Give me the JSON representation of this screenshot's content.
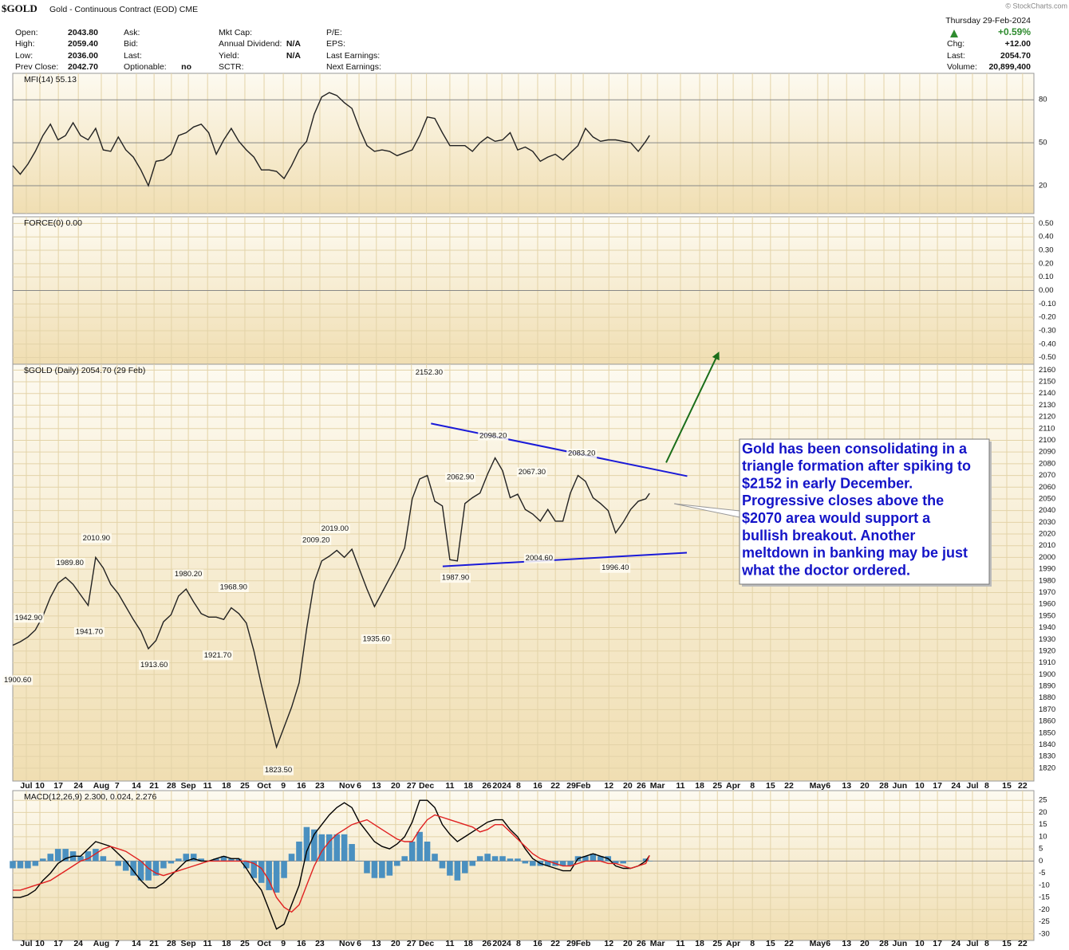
{
  "header": {
    "symbol": "$GOLD",
    "description": "Gold - Continuous Contract (EOD) CME",
    "credit": "© StockCharts.com",
    "fields": [
      [
        {
          "label": "Open:",
          "value": "2043.80"
        },
        {
          "label": "High:",
          "value": "2059.40"
        },
        {
          "label": "Low:",
          "value": "2036.00"
        },
        {
          "label": "Prev Close:",
          "value": "2042.70"
        }
      ],
      [
        {
          "label": "Ask:"
        },
        {
          "label": "Bid:"
        },
        {
          "label": "Last:"
        },
        {
          "label": "Optionable:",
          "value": "no"
        }
      ],
      [
        {
          "label": "Mkt Cap:"
        },
        {
          "label": "Annual Dividend:",
          "value": "N/A"
        },
        {
          "label": "Yield:",
          "value": "N/A"
        },
        {
          "label": "SCTR:"
        }
      ],
      [
        {
          "label": "P/E:"
        },
        {
          "label": "EPS:"
        },
        {
          "label": "Last Earnings:"
        },
        {
          "label": "Next Earnings:"
        }
      ]
    ],
    "date": "Thursday  29-Feb-2024",
    "change_pct": "+0.59%",
    "stats": [
      {
        "label": "Chg:",
        "value": "+12.00"
      },
      {
        "label": "Last:",
        "value": "2054.70"
      },
      {
        "label": "Volume:",
        "value": "20,899,400"
      }
    ]
  },
  "x_axis": {
    "xlim": [
      -3,
      268
    ],
    "x": [
      -3,
      -1,
      1,
      3,
      5,
      7,
      9,
      11,
      13,
      15,
      17,
      19,
      21,
      23,
      25,
      27,
      29,
      31,
      33,
      35,
      37,
      39,
      41,
      43,
      45,
      47,
      49,
      51,
      53,
      55,
      57,
      59,
      61,
      63,
      65,
      67,
      69,
      71,
      73,
      75,
      77,
      79,
      81,
      83,
      85,
      87,
      89,
      91,
      93,
      95,
      97,
      99,
      101,
      103,
      105,
      107,
      109,
      111,
      113,
      115,
      117,
      119,
      121,
      123,
      125,
      127,
      129,
      131,
      133,
      135,
      137,
      139,
      141,
      143,
      145,
      147,
      149,
      151,
      153,
      155,
      157,
      159,
      161,
      163,
      165,
      166
    ],
    "xticks": [
      {
        "value": 0.6,
        "label": "Jul"
      },
      {
        "value": 4.2,
        "label": "10"
      },
      {
        "value": 9.1,
        "label": "17"
      },
      {
        "value": 14.4,
        "label": "24"
      },
      {
        "value": 20.5,
        "label": "Aug"
      },
      {
        "value": 24.7,
        "label": "7"
      },
      {
        "value": 29.8,
        "label": "14"
      },
      {
        "value": 34.5,
        "label": "21"
      },
      {
        "value": 39.1,
        "label": "28"
      },
      {
        "value": 43.6,
        "label": "Sep"
      },
      {
        "value": 48.7,
        "label": "11"
      },
      {
        "value": 53.7,
        "label": "18"
      },
      {
        "value": 58.6,
        "label": "25"
      },
      {
        "value": 63.7,
        "label": "Oct"
      },
      {
        "value": 68.8,
        "label": "9"
      },
      {
        "value": 73.6,
        "label": "16"
      },
      {
        "value": 78.5,
        "label": "23"
      },
      {
        "value": 85.7,
        "label": "Nov"
      },
      {
        "value": 88.9,
        "label": "6"
      },
      {
        "value": 93.5,
        "label": "13"
      },
      {
        "value": 98.6,
        "label": "20"
      },
      {
        "value": 102.8,
        "label": "27"
      },
      {
        "value": 106.8,
        "label": "Dec"
      },
      {
        "value": 113,
        "label": "11"
      },
      {
        "value": 117.9,
        "label": "18"
      },
      {
        "value": 122.8,
        "label": "26"
      },
      {
        "value": 126.8,
        "label": "2024"
      },
      {
        "value": 131.2,
        "label": "8"
      },
      {
        "value": 136.3,
        "label": "16"
      },
      {
        "value": 141,
        "label": "22"
      },
      {
        "value": 145.2,
        "label": "29"
      },
      {
        "value": 148.4,
        "label": "Feb"
      },
      {
        "value": 155.2,
        "label": "12"
      },
      {
        "value": 160.2,
        "label": "20"
      },
      {
        "value": 163.8,
        "label": "26"
      },
      {
        "value": 168.1,
        "label": "Mar"
      },
      {
        "value": 174.2,
        "label": "11"
      },
      {
        "value": 179.3,
        "label": "18"
      },
      {
        "value": 184,
        "label": "25"
      },
      {
        "value": 188.2,
        "label": "Apr"
      },
      {
        "value": 193.3,
        "label": "8"
      },
      {
        "value": 198.1,
        "label": "15"
      },
      {
        "value": 203,
        "label": "22"
      },
      {
        "value": 210.6,
        "label": "May"
      },
      {
        "value": 213.4,
        "label": "6"
      },
      {
        "value": 218.3,
        "label": "13"
      },
      {
        "value": 223.1,
        "label": "20"
      },
      {
        "value": 228.2,
        "label": "28"
      },
      {
        "value": 232.4,
        "label": "Jun"
      },
      {
        "value": 237.7,
        "label": "10"
      },
      {
        "value": 242.4,
        "label": "17"
      },
      {
        "value": 247.3,
        "label": "24"
      },
      {
        "value": 251.7,
        "label": "Jul"
      },
      {
        "value": 255.5,
        "label": "8"
      },
      {
        "value": 260.8,
        "label": "15"
      },
      {
        "value": 265,
        "label": "22"
      }
    ]
  },
  "chart_data": [
    {
      "type": "line",
      "title": "MFI(14) 55.13",
      "ylim": [
        0.5,
        98.5
      ],
      "yticks": [
        20,
        50,
        80
      ],
      "grid": true,
      "series": [
        {
          "color": "#222222",
          "values": [
            34,
            28,
            35,
            44,
            55,
            63,
            52,
            55,
            64,
            55,
            52,
            60,
            45,
            44,
            54,
            45,
            40,
            31,
            20,
            37,
            38,
            42,
            55,
            57,
            61,
            63,
            57,
            42,
            52,
            60,
            51,
            45,
            40,
            31,
            31,
            30,
            25,
            34,
            45,
            51,
            70,
            82,
            85,
            83,
            78,
            74,
            60,
            48,
            44,
            45,
            44,
            41,
            43,
            45,
            55,
            68,
            67,
            57,
            48,
            48,
            48,
            44,
            50,
            54,
            51,
            52,
            57,
            45,
            47,
            44,
            37,
            40,
            42,
            38,
            43,
            48,
            60,
            54,
            51,
            52,
            52,
            51,
            50,
            44,
            51,
            55.13
          ]
        }
      ]
    },
    {
      "type": "line",
      "title": "FORCE(0) 0.00",
      "ylim": [
        -0.55,
        0.55
      ],
      "grid": true,
      "series": [],
      "yticks": [
        {
          "value": 0.5,
          "label": "0.50"
        },
        {
          "value": 0.4,
          "label": "0.40"
        },
        {
          "value": 0.3,
          "label": "0.30"
        },
        {
          "value": 0.2,
          "label": "0.20"
        },
        {
          "value": 0.1,
          "label": "0.10"
        },
        {
          "value": 0,
          "label": "0.00"
        },
        {
          "value": -0.1,
          "label": "-0.10"
        },
        {
          "value": -0.2,
          "label": "-0.20"
        },
        {
          "value": -0.3,
          "label": "-0.30"
        },
        {
          "value": -0.4,
          "label": "-0.40"
        },
        {
          "value": -0.5,
          "label": "-0.50"
        }
      ]
    },
    {
      "type": "line",
      "title": "$GOLD (Daily) 2054.70 (29 Feb)",
      "ylim": [
        1809,
        2165
      ],
      "grid": true,
      "yticks": [
        1820,
        1830,
        1840,
        1850,
        1860,
        1870,
        1880,
        1890,
        1900,
        1910,
        1920,
        1930,
        1940,
        1950,
        1960,
        1970,
        1980,
        1990,
        2000,
        2010,
        2020,
        2030,
        2040,
        2050,
        2060,
        2070,
        2080,
        2090,
        2100,
        2110,
        2120,
        2130,
        2140,
        2150,
        2160
      ],
      "series": [
        {
          "color": "#222222",
          "values": [
            1925,
            1928,
            1932,
            1938,
            1950,
            1966,
            1978,
            1983,
            1977,
            1968,
            1959,
            2000,
            1991,
            1977,
            1969,
            1958,
            1947,
            1937,
            1922,
            1929,
            1945,
            1951,
            1967,
            1973,
            1962,
            1952,
            1949,
            1949,
            1947,
            1957,
            1952,
            1944,
            1920,
            1891,
            1864,
            1838,
            1855,
            1872,
            1893,
            1939,
            1979,
            1997,
            2001,
            2006,
            2000,
            2007,
            1990,
            1973,
            1958,
            1970,
            1982,
            1994,
            2008,
            2050,
            2067,
            2070,
            2048,
            2044,
            1998,
            1997,
            2046,
            2051,
            2055,
            2071,
            2085,
            2074,
            2051,
            2054,
            2041,
            2037,
            2031,
            2041,
            2031,
            2031,
            2055,
            2070,
            2065,
            2051,
            2046,
            2040,
            2021,
            2030,
            2041,
            2048,
            2050,
            2054.7
          ]
        }
      ],
      "annotations": [
        {
          "x": 107.5,
          "value": 2152.3,
          "label": "2152.30",
          "side": "above"
        },
        {
          "x": 124.5,
          "value": 2098.2,
          "label": "2098.20",
          "side": "above"
        },
        {
          "x": 148,
          "value": 2083.2,
          "label": "2083.20",
          "side": "above"
        },
        {
          "x": 134.8,
          "value": 2067.3,
          "label": "2067.30",
          "side": "above"
        },
        {
          "x": 115.8,
          "value": 2062.9,
          "label": "2062.90",
          "side": "above"
        },
        {
          "x": 136.7,
          "value": 2004.6,
          "label": "2004.60",
          "side": "below"
        },
        {
          "x": 156.9,
          "value": 1996.4,
          "label": "1996.40",
          "side": "below"
        },
        {
          "x": 114.5,
          "value": 1987.9,
          "label": "1987.90",
          "side": "below"
        },
        {
          "x": 82.5,
          "value": 2019,
          "label": "2019.00",
          "side": "above"
        },
        {
          "x": 77.5,
          "value": 2009.2,
          "label": "2009.20",
          "side": "above"
        },
        {
          "x": 93.5,
          "value": 1935.6,
          "label": "1935.60",
          "side": "below"
        },
        {
          "x": 67.5,
          "value": 1823.5,
          "label": "1823.50",
          "side": "below"
        },
        {
          "x": 55.6,
          "value": 1968.9,
          "label": "1968.90",
          "side": "above"
        },
        {
          "x": 43.6,
          "value": 1980.2,
          "label": "1980.20",
          "side": "above"
        },
        {
          "x": 51.4,
          "value": 1921.7,
          "label": "1921.70",
          "side": "below"
        },
        {
          "x": 19.2,
          "value": 2010.9,
          "label": "2010.90",
          "side": "above"
        },
        {
          "x": 12.2,
          "value": 1989.8,
          "label": "1989.80",
          "side": "above"
        },
        {
          "x": 17.3,
          "value": 1941.7,
          "label": "1941.70",
          "side": "below"
        },
        {
          "x": 34.5,
          "value": 1913.6,
          "label": "1913.60",
          "side": "below"
        },
        {
          "x": 1.2,
          "value": 1942.9,
          "label": "1942.90",
          "side": "above"
        },
        {
          "x": -1.7,
          "value": 1900.6,
          "label": "1900.60",
          "side": "below"
        }
      ],
      "trendlines": [
        {
          "x": [
            108,
            176
          ],
          "values": [
            2114.4,
            2069.4
          ],
          "color": "#1a1ad8"
        },
        {
          "x": [
            111.1,
            175.9
          ],
          "values": [
            1992.4,
            2004
          ],
          "color": "#1a1ad8"
        },
        {
          "x": [
            170.4,
            184.2
          ],
          "values": [
            2081,
            2174
          ],
          "color": "#1a6e1a",
          "arrow": true
        }
      ],
      "note": {
        "lines": [
          "Gold has been consolidating in a",
          "triangle formation after spiking to",
          "$2152 in early December.",
          "Progressive closes above the",
          "$2070 area would support a",
          "bullish breakout. Another",
          "meltdown in banking may be just",
          "what the doctor ordered."
        ]
      }
    },
    {
      "type": "line",
      "title": "MACD(12,26,9) 2.300, 0.024, 2.276",
      "ylim": [
        -32.7,
        29
      ],
      "grid": true,
      "yticks": [
        -30,
        -25,
        -20,
        -15,
        -10,
        -5,
        0,
        5,
        10,
        15,
        20,
        25
      ],
      "series": [
        {
          "type": "bar",
          "color": "#4a90c0",
          "values": [
            -3,
            -3,
            -3,
            -2,
            1,
            3,
            5,
            5,
            4,
            2,
            4,
            5,
            2,
            0,
            -2,
            -4,
            -6,
            -8,
            -8,
            -6,
            -3,
            -1,
            1,
            3,
            3,
            1,
            0,
            1,
            2,
            1,
            1,
            -3,
            -7,
            -9,
            -12,
            -13,
            -7,
            3,
            8,
            14,
            13,
            11,
            11,
            11,
            11,
            7,
            0,
            -5,
            -7,
            -7,
            -6,
            -2,
            2,
            8,
            12,
            8,
            3,
            -3,
            -6,
            -8,
            -5,
            -2,
            2,
            3,
            2,
            2,
            1,
            1,
            -1,
            -2,
            -2,
            -2,
            -2,
            -2,
            -2,
            2,
            2,
            3,
            2,
            2,
            -1,
            -1,
            0,
            0,
            1,
            0.024
          ]
        },
        {
          "color": "#000000",
          "values": [
            -15,
            -15,
            -14,
            -12,
            -8,
            -5,
            -1,
            1,
            2,
            2,
            5,
            8,
            7,
            6,
            3,
            0,
            -4,
            -8,
            -11,
            -11,
            -9,
            -6,
            -3,
            0,
            1,
            0,
            0,
            1,
            2,
            1,
            1,
            -3,
            -8,
            -12,
            -20,
            -28,
            -26,
            -18,
            -10,
            4,
            11,
            15,
            19,
            22,
            24,
            22,
            16,
            12,
            8,
            6,
            5,
            7,
            10,
            16,
            25,
            25,
            22,
            15,
            11,
            8,
            10,
            12,
            14,
            16,
            17,
            17,
            13,
            10,
            5,
            1,
            -1,
            -2,
            -3,
            -4,
            -4,
            1,
            2,
            3,
            2,
            1,
            -2,
            -3,
            -3,
            -2,
            0,
            2.3
          ]
        },
        {
          "color": "#e02020",
          "values": [
            -12,
            -12,
            -11,
            -10,
            -9,
            -8,
            -6,
            -4,
            -2,
            0,
            1,
            3,
            5,
            6,
            5,
            4,
            2,
            0,
            -3,
            -5,
            -6,
            -5,
            -4,
            -3,
            -2,
            -1,
            0,
            0,
            0,
            0,
            0,
            0,
            -1,
            -3,
            -8,
            -15,
            -19,
            -21,
            -18,
            -10,
            -2,
            4,
            8,
            11,
            13,
            15,
            16,
            17,
            15,
            13,
            11,
            9,
            8,
            8,
            13,
            17,
            19,
            18,
            17,
            16,
            15,
            14,
            12,
            13,
            15,
            15,
            12,
            9,
            6,
            3,
            1,
            0,
            -1,
            -2,
            -2,
            -1,
            0,
            0,
            0,
            -1,
            -1,
            -2,
            -3,
            -2,
            -1,
            2.276
          ]
        }
      ]
    }
  ]
}
